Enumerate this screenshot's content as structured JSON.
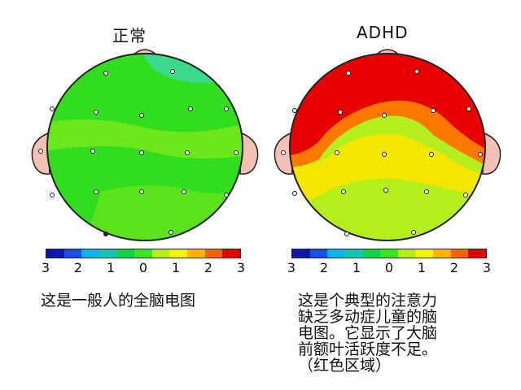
{
  "normal": {
    "title": "正常",
    "caption": "这是一般人的全脑电图"
  },
  "adhd": {
    "title": "ADHD",
    "caption": "这是个典型的注意力\n缺乏多动症儿童的脑\n电图。它显示了大脑\n前额叶活跃度不足。\n（红色区域）"
  },
  "scale": {
    "labels": [
      "3",
      "2",
      "1",
      "0",
      "1",
      "2",
      "3"
    ],
    "colors": [
      "#0a1aa8",
      "#1a4ef0",
      "#00b4e6",
      "#00c8b4",
      "#00d24a",
      "#3ce61e",
      "#b4ee14",
      "#f0f000",
      "#ffb400",
      "#ff6400",
      "#e60000"
    ]
  },
  "colors": {
    "ear": "#f2c0b4",
    "outline": "#222222",
    "red": "#e60000",
    "orange": "#ff7800",
    "yellow": "#f5e600",
    "lime": "#b4ee1e",
    "green": "#32dc1e",
    "teal": "#3cd98c"
  }
}
